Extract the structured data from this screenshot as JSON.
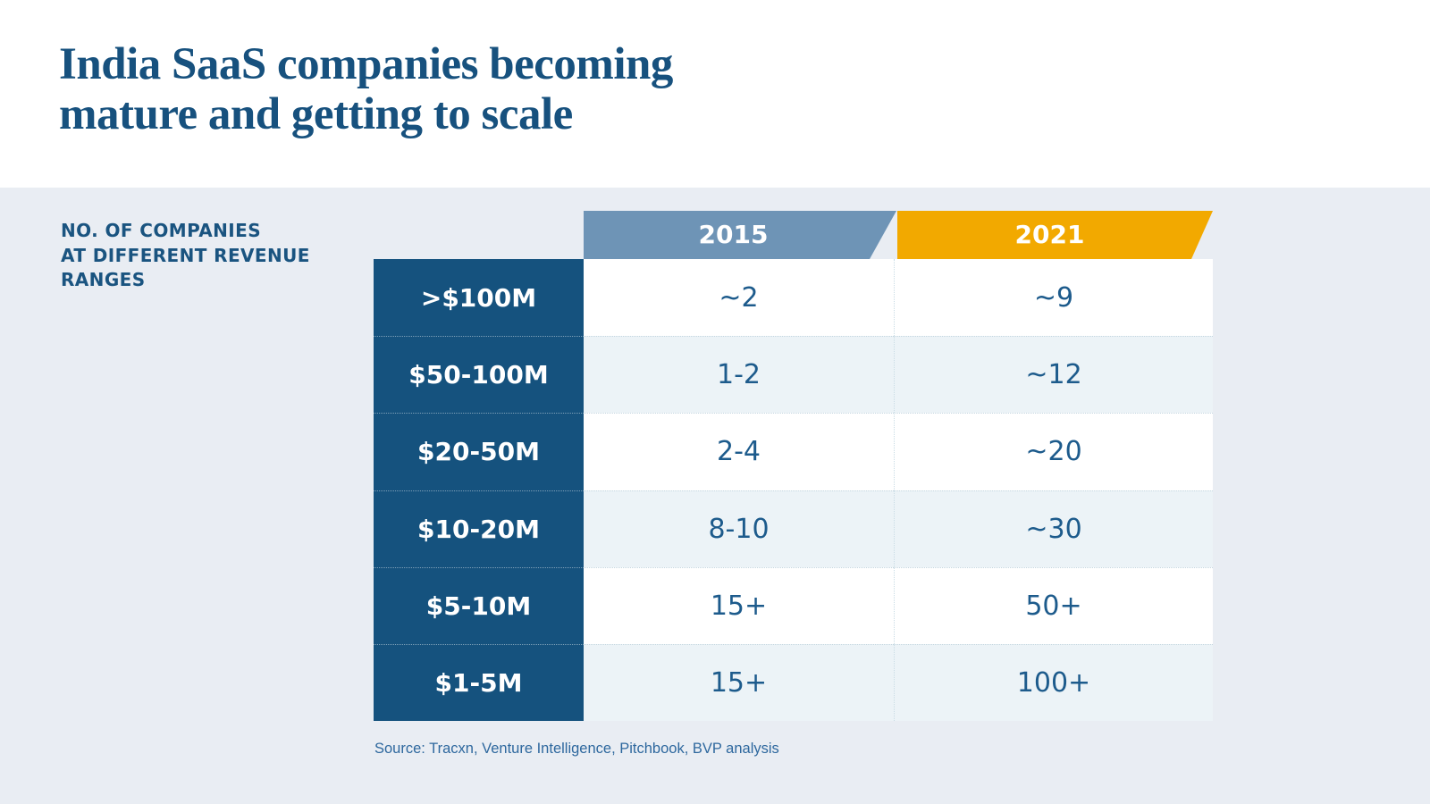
{
  "title": {
    "line1": "India SaaS companies becoming",
    "line2": "mature and getting to scale"
  },
  "side_label": {
    "line1": "NO. OF COMPANIES",
    "line2": "AT DIFFERENT REVENUE",
    "line3": "RANGES"
  },
  "chart_data": {
    "type": "table",
    "title": "India SaaS companies becoming mature and getting to scale",
    "row_axis_label": "NO. OF COMPANIES AT DIFFERENT REVENUE RANGES",
    "columns": [
      "2015",
      "2021"
    ],
    "categories": [
      ">$100M",
      "$50-100M",
      "$20-50M",
      "$10-20M",
      "$5-10M",
      "$1-5M"
    ],
    "series": [
      {
        "name": "2015",
        "values": [
          "~2",
          "1-2",
          "2-4",
          "8-10",
          "15+",
          "15+"
        ]
      },
      {
        "name": "2021",
        "values": [
          "~9",
          "~12",
          "~20",
          "~30",
          "50+",
          "100+"
        ]
      }
    ],
    "source": "Source: Tracxn, Venture Intelligence, Pitchbook, BVP analysis",
    "layout": {
      "legend_position": "column-banners-top",
      "grid": "dotted-row-separators",
      "row_striping": [
        "white",
        "light-blue"
      ]
    },
    "colors": {
      "header_2015_bg": "#6E94B6",
      "header_2021_bg": "#F2A900",
      "row_label_bg": "#15527E",
      "title_text": "#17517E",
      "value_text": "#1D5B8C",
      "row_alt_bg": "#ECF3F7",
      "page_bg": "#E9EDF3",
      "header_band_bg": "#FFFFFF"
    }
  }
}
